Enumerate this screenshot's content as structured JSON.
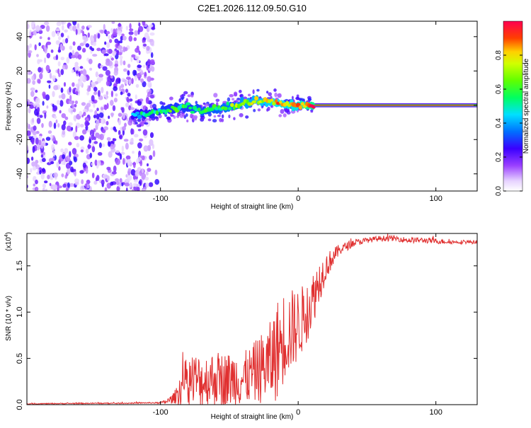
{
  "title": "C2E1.2026.112.09.50.G10",
  "chart_data": [
    {
      "type": "heatmap",
      "name": "spectrogram",
      "xlabel": "Height of straight line (km)",
      "ylabel": "Frequency (Hz)",
      "xlim": [
        -197,
        130
      ],
      "ylim": [
        -50,
        49
      ],
      "xticks": [
        -100,
        0,
        100
      ],
      "yticks": [
        -40,
        -20,
        0,
        20,
        40
      ],
      "noise_region_km": [
        -197,
        -105
      ],
      "ridge": {
        "x": [
          -120,
          -110,
          -100,
          -90,
          -80,
          -70,
          -60,
          -50,
          -40,
          -30,
          -20,
          -10,
          0,
          10,
          20,
          60,
          100,
          130
        ],
        "freq": [
          -6,
          -5,
          -4,
          -2,
          -1,
          -3,
          -2,
          -1,
          1,
          3,
          2,
          0,
          0,
          0,
          0,
          0,
          0,
          0
        ],
        "amplitude": [
          0.45,
          0.5,
          0.55,
          0.55,
          0.55,
          0.6,
          0.6,
          0.65,
          0.7,
          0.75,
          0.8,
          0.85,
          0.85,
          0.95,
          0.98,
          0.98,
          0.98,
          0.98
        ]
      },
      "colorbar": {
        "label": "Normalized spectral amplitude",
        "range": [
          0,
          1
        ],
        "ticks": [
          "0.0",
          "0.2",
          "0.4",
          "0.6",
          "0.8"
        ],
        "tick_values": [
          0,
          0.2,
          0.4,
          0.6,
          0.8
        ]
      }
    },
    {
      "type": "line",
      "name": "snr",
      "xlabel": "Height of straight line (km)",
      "ylabel": "SNR (10 * v/v)",
      "multiplier": "(x10",
      "multiplier_exp": "4",
      "multiplier_close": ")",
      "xlim": [
        -197,
        130
      ],
      "ylim": [
        0,
        1.85
      ],
      "xticks": [
        -100,
        0,
        100
      ],
      "yticks": [
        "0.0",
        "0.5",
        "1.0",
        "1.5"
      ],
      "ytick_values": [
        0,
        0.5,
        1.0,
        1.5
      ],
      "color": "#e03030",
      "envelope": {
        "x": [
          -197,
          -150,
          -130,
          -110,
          -100,
          -95,
          -90,
          -85,
          -80,
          -75,
          -70,
          -65,
          -60,
          -55,
          -50,
          -45,
          -40,
          -35,
          -30,
          -25,
          -20,
          -15,
          -10,
          -5,
          0,
          5,
          10,
          15,
          20,
          25,
          30,
          40,
          50,
          60,
          70,
          80,
          90,
          100,
          110,
          120,
          130
        ],
        "y": [
          0.01,
          0.015,
          0.015,
          0.02,
          0.02,
          0.04,
          0.08,
          0.2,
          0.3,
          0.3,
          0.28,
          0.3,
          0.32,
          0.3,
          0.3,
          0.32,
          0.3,
          0.35,
          0.4,
          0.45,
          0.5,
          0.65,
          0.8,
          0.85,
          0.9,
          1.0,
          1.15,
          1.35,
          1.5,
          1.6,
          1.68,
          1.75,
          1.78,
          1.8,
          1.8,
          1.78,
          1.78,
          1.77,
          1.76,
          1.76,
          1.76
        ],
        "noise": [
          0.005,
          0.006,
          0.006,
          0.006,
          0.008,
          0.03,
          0.06,
          0.2,
          0.28,
          0.3,
          0.28,
          0.3,
          0.3,
          0.3,
          0.3,
          0.3,
          0.3,
          0.3,
          0.35,
          0.4,
          0.45,
          0.55,
          0.5,
          0.45,
          0.4,
          0.35,
          0.3,
          0.25,
          0.15,
          0.1,
          0.06,
          0.04,
          0.03,
          0.03,
          0.03,
          0.03,
          0.03,
          0.03,
          0.02,
          0.02,
          0.02
        ]
      }
    }
  ],
  "colors": {
    "axis": "#000000",
    "snr_line": "#e03030"
  }
}
